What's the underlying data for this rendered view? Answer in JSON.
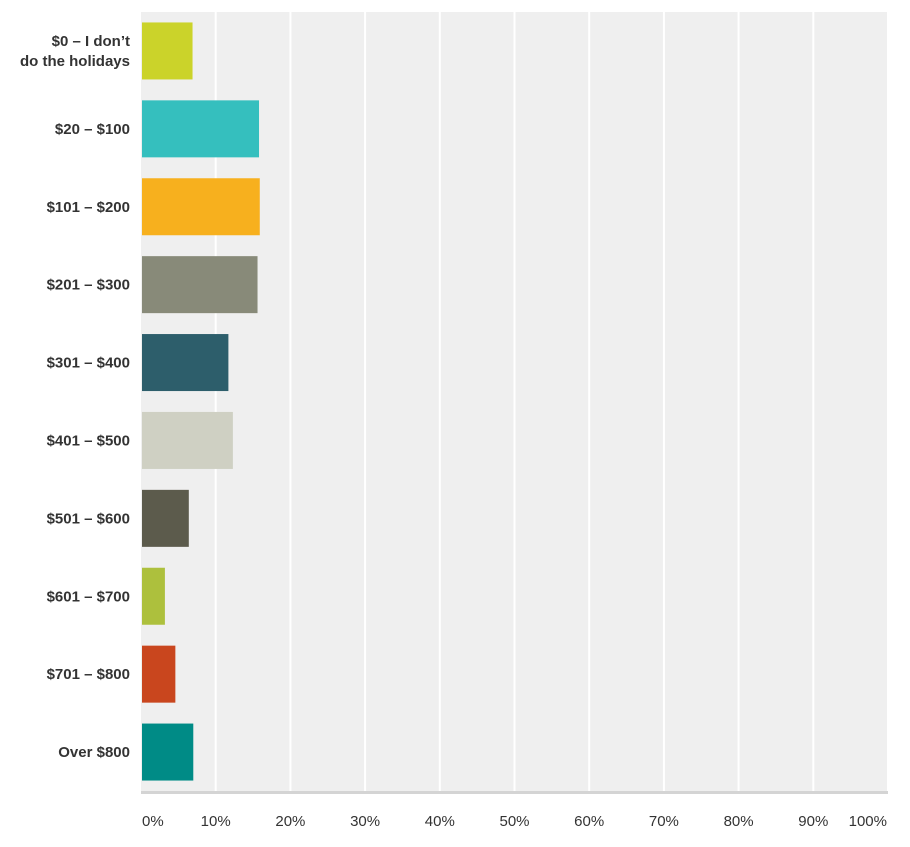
{
  "chart_data": {
    "type": "bar",
    "orientation": "horizontal",
    "categories": [
      [
        "$0 – I don’t",
        "do the holidays"
      ],
      [
        "$20 – $100"
      ],
      [
        "$101 – $200"
      ],
      [
        "$201 – $300"
      ],
      [
        "$301 – $400"
      ],
      [
        "$401 – $500"
      ],
      [
        "$501 – $600"
      ],
      [
        "$601 – $700"
      ],
      [
        "$701 – $800"
      ],
      [
        "Over $800"
      ]
    ],
    "values": [
      6.9,
      15.8,
      15.9,
      15.6,
      11.7,
      12.3,
      6.4,
      3.2,
      4.6,
      7.0
    ],
    "colors": [
      "#cbd32a",
      "#35bfbe",
      "#f7b01e",
      "#888a79",
      "#2d5e6b",
      "#cfd0c3",
      "#5c5b4c",
      "#adc03d",
      "#c9461e",
      "#008b86"
    ],
    "xlim": [
      0,
      100
    ],
    "x_ticks": [
      "0%",
      "10%",
      "20%",
      "30%",
      "40%",
      "50%",
      "60%",
      "70%",
      "80%",
      "90%",
      "100%"
    ],
    "grid": true,
    "background": "#efefef",
    "title": "",
    "xlabel": "",
    "ylabel": ""
  }
}
